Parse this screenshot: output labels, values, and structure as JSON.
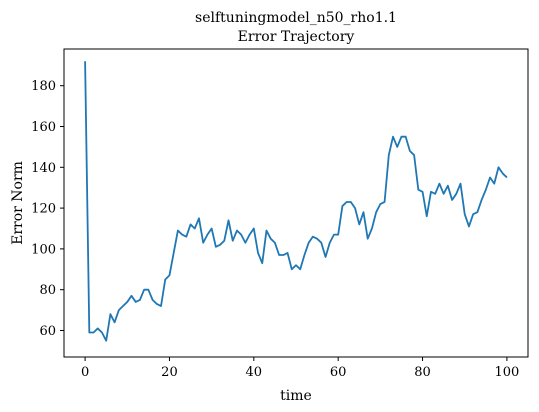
{
  "chart_data": {
    "type": "line",
    "title": "selftuningmodel_n50_rho1.1",
    "subtitle": "Error Trajectory",
    "xlabel": "time",
    "ylabel": "Error Norm",
    "xlim": [
      -5,
      105
    ],
    "ylim": [
      47,
      198
    ],
    "xticks": [
      0,
      20,
      40,
      60,
      80,
      100
    ],
    "yticks": [
      60,
      80,
      100,
      120,
      140,
      160,
      180
    ],
    "grid": false,
    "legend": "none",
    "series": [
      {
        "color": "#1f77b4",
        "x": [
          0,
          1,
          2,
          3,
          4,
          5,
          6,
          7,
          8,
          9,
          10,
          11,
          12,
          13,
          14,
          15,
          16,
          17,
          18,
          19,
          20,
          21,
          22,
          23,
          24,
          25,
          26,
          27,
          28,
          29,
          30,
          31,
          32,
          33,
          34,
          35,
          36,
          37,
          38,
          39,
          40,
          41,
          42,
          43,
          44,
          45,
          46,
          47,
          48,
          49,
          50,
          51,
          52,
          53,
          54,
          55,
          56,
          57,
          58,
          59,
          60,
          61,
          62,
          63,
          64,
          65,
          66,
          67,
          68,
          69,
          70,
          71,
          72,
          73,
          74,
          75,
          76,
          77,
          78,
          79,
          80,
          81,
          82,
          83,
          84,
          85,
          86,
          87,
          88,
          89,
          90,
          91,
          92,
          93,
          94,
          95,
          96,
          97,
          98,
          99,
          100
        ],
        "y": [
          192,
          59,
          59,
          61,
          59,
          55,
          68,
          64,
          70,
          72,
          74,
          77,
          74,
          75,
          80,
          80,
          75,
          73,
          72,
          85,
          87,
          98,
          109,
          107,
          106,
          112,
          110,
          115,
          103,
          107,
          110,
          101,
          102,
          104,
          114,
          104,
          109,
          107,
          103,
          107,
          110,
          98,
          93,
          109,
          105,
          103,
          97,
          97,
          98,
          90,
          92,
          90,
          97,
          103,
          106,
          105,
          103,
          96,
          103,
          107,
          107,
          121,
          123,
          123,
          120,
          112,
          118,
          105,
          110,
          118,
          122,
          123,
          146,
          155,
          150,
          155,
          155,
          148,
          146,
          129,
          128,
          116,
          128,
          127,
          132,
          127,
          131,
          124,
          127,
          132,
          117,
          111,
          117,
          118,
          124,
          129,
          135,
          132,
          140,
          137,
          135
        ]
      }
    ]
  }
}
